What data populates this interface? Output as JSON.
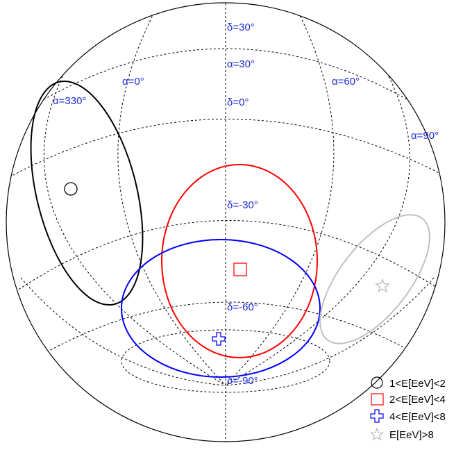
{
  "chart_data": {
    "type": "scatter",
    "projection": "orthographic sky map (equatorial grid)",
    "grid": true,
    "grid_labels": {
      "declination": [
        "δ=30°",
        "δ=0°",
        "δ=-30°",
        "δ=-60°",
        "δ=-90°"
      ],
      "right_ascension": [
        "α=0°",
        "α=30°",
        "α=60°",
        "α=90°",
        "α=330°"
      ]
    },
    "legend_position": "bottom-right",
    "series": [
      {
        "name": "1<E[EeV]<2",
        "marker": "circle",
        "color": "#000000"
      },
      {
        "name": "2<E[EeV]<4",
        "marker": "square",
        "color": "#ff0000"
      },
      {
        "name": "4<E[EeV]<8",
        "marker": "cross",
        "color": "#0000ff"
      },
      {
        "name": "E[EeV]>8",
        "marker": "star",
        "color": "#c0c0c0"
      }
    ]
  },
  "colors": {
    "grid": "#000000",
    "grid_label": "#1f2bd6",
    "bin1": "#000000",
    "bin2": "#ff0000",
    "bin3": "#0000ff",
    "bin4": "#c0c0c0"
  }
}
